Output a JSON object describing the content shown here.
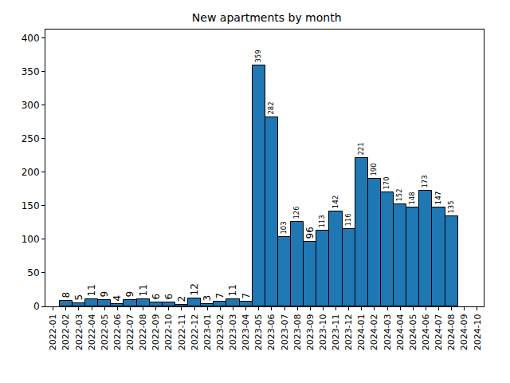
{
  "chart_data": {
    "type": "bar",
    "title": "New apartments by month",
    "categories": [
      "2022-01",
      "2022-02",
      "2022-03",
      "2022-04",
      "2022-05",
      "2022-06",
      "2022-07",
      "2022-08",
      "2022-09",
      "2022-10",
      "2022-11",
      "2022-12",
      "2023-01",
      "2023-02",
      "2023-03",
      "2023-04",
      "2023-05",
      "2023-06",
      "2023-07",
      "2023-08",
      "2023-09",
      "2023-10",
      "2023-11",
      "2023-12",
      "2024-01",
      "2024-02",
      "2024-03",
      "2024-04",
      "2024-05",
      "2024-06",
      "2024-07",
      "2024-08",
      "2024-09",
      "2024-10"
    ],
    "values": [
      null,
      8,
      5,
      11,
      9,
      4,
      9,
      11,
      6,
      6,
      2,
      12,
      3,
      7,
      11,
      7,
      359,
      282,
      103,
      126,
      96,
      113,
      142,
      116,
      221,
      190,
      170,
      152,
      148,
      173,
      147,
      135,
      null,
      null
    ],
    "color": "#1f77b4",
    "ylim": [
      0,
      413
    ],
    "yticks": [
      0,
      50,
      100,
      150,
      200,
      250,
      300,
      350,
      400
    ],
    "grid": false,
    "data_labels": true
  }
}
